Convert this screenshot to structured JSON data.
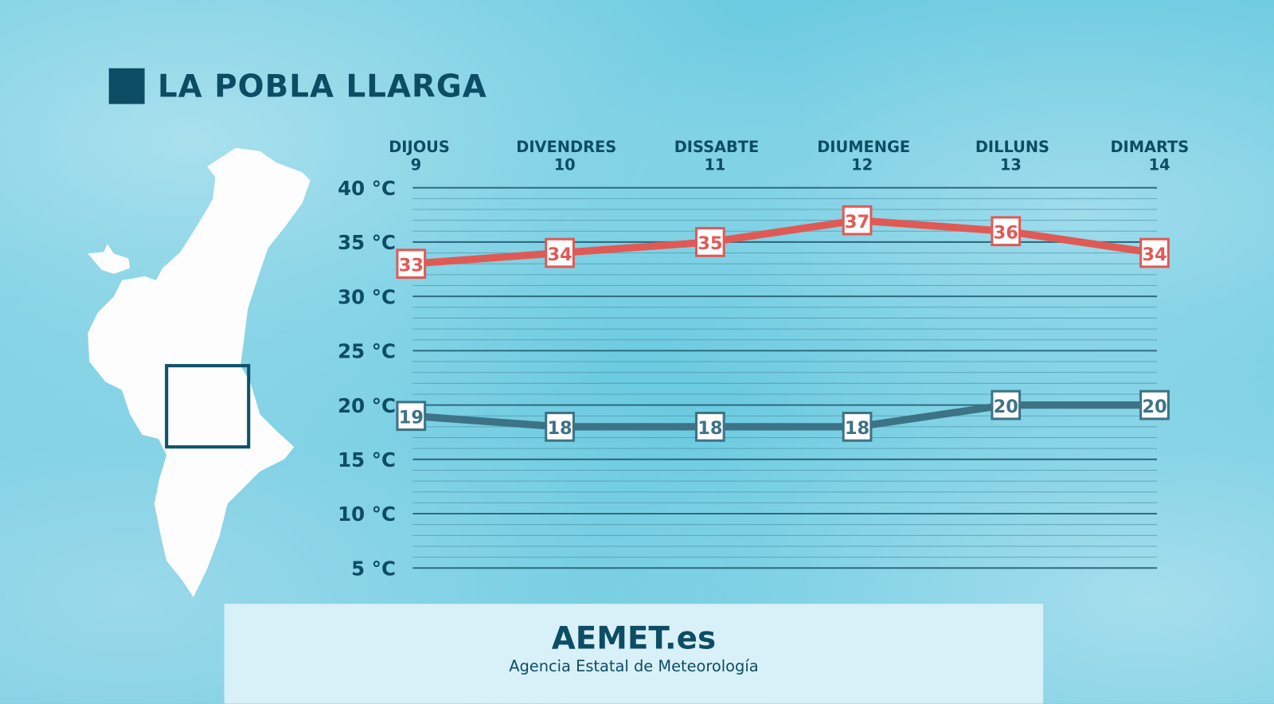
{
  "location": "LA POBLA LLARGA",
  "colors": {
    "max": "#e05a55",
    "min": "#3d7386",
    "title": "#0d4d64"
  },
  "footer": {
    "brand": "AEMET.es",
    "subtitle": "Agencia Estatal de Meteorología"
  },
  "chart_data": {
    "type": "line",
    "categories": [
      {
        "day": "DIJOUS",
        "date": "9"
      },
      {
        "day": "DIVENDRES",
        "date": "10"
      },
      {
        "day": "DISSABTE",
        "date": "11"
      },
      {
        "day": "DIUMENGE",
        "date": "12"
      },
      {
        "day": "DILLUNS",
        "date": "13"
      },
      {
        "day": "DIMARTS",
        "date": "14"
      }
    ],
    "series": [
      {
        "key": "max",
        "values": [
          33,
          34,
          35,
          37,
          36,
          34
        ]
      },
      {
        "key": "min",
        "values": [
          19,
          18,
          18,
          18,
          20,
          20
        ]
      }
    ],
    "yticks": [
      "40 °C",
      "35 °C",
      "30 °C",
      "25 °C",
      "20 °C",
      "15 °C",
      "10 °C",
      "5 °C"
    ],
    "ylim": [
      5,
      40
    ],
    "grid": true
  }
}
